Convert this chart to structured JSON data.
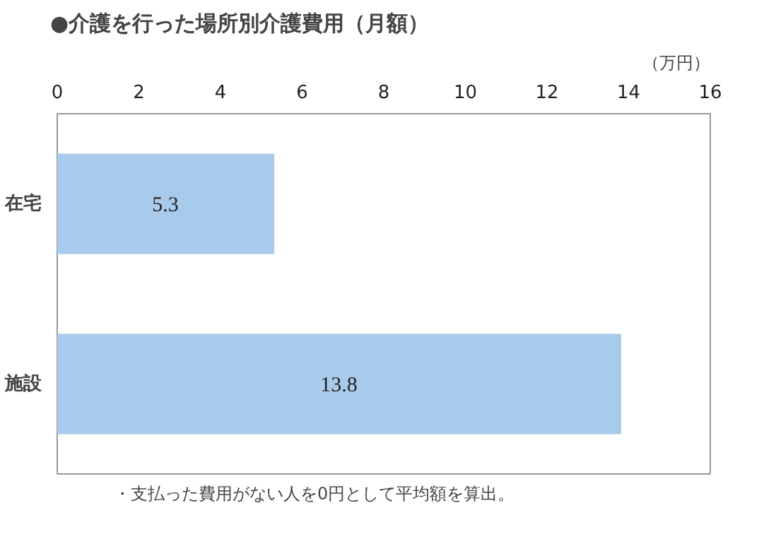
{
  "chart_data": {
    "type": "bar",
    "orientation": "horizontal",
    "title": "●介護を行った場所別介護費用（月額）",
    "xlabel": "（万円）",
    "categories": [
      "在宅",
      "施設"
    ],
    "values": [
      5.3,
      13.8
    ],
    "color": "#a9cbeb",
    "xlim": [
      0,
      16
    ],
    "xticks": [
      0,
      2,
      4,
      6,
      8,
      10,
      12,
      14,
      16
    ],
    "data_labels": true,
    "grid": false,
    "annotations": [
      "・支払った費用がない人を0円として平均額を算出。"
    ]
  }
}
